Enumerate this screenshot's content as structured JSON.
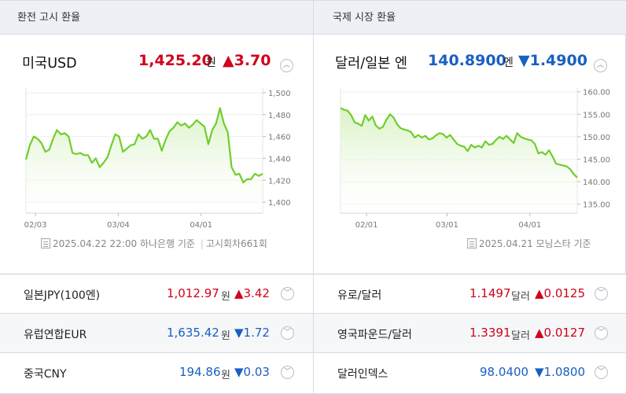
{
  "tabs": {
    "left": "환전 고시 환율",
    "right": "국제 시장 환율"
  },
  "colors": {
    "up": "#d0021b",
    "down": "#1a5fc1",
    "line": "#6fce2c",
    "fill": "#d9f2c4"
  },
  "usd": {
    "name": "미국USD",
    "value": "1,425.20",
    "unit": "원",
    "change": "▲3.70",
    "direction": "up",
    "toggle_icon": "chevron-up-icon",
    "source": "2025.04.22 22:00 하나은행 기준",
    "source_sep": "|",
    "source_extra": "고시회차661회"
  },
  "jpy": {
    "name": "달러/일본 엔",
    "value": "140.8900",
    "unit": "엔",
    "change": "▼1.4900",
    "direction": "down",
    "toggle_icon": "chevron-up-icon",
    "source": "2025.04.21 모닝스타 기준"
  },
  "chart_data": [
    {
      "type": "area",
      "title": "미국USD",
      "x_ticks": [
        "02/03",
        "03/04",
        "04/01"
      ],
      "y_ticks": [
        1400,
        1420,
        1440,
        1460,
        1480,
        1500
      ],
      "ylim": [
        1390,
        1505
      ],
      "y_decimals": 3,
      "series": [
        {
          "values": [
            1439,
            1452,
            1460,
            1458,
            1454,
            1446,
            1448,
            1458,
            1466,
            1462,
            1463,
            1460,
            1445,
            1444,
            1445,
            1443,
            1443,
            1436,
            1440,
            1432,
            1436,
            1441,
            1452,
            1462,
            1460,
            1446,
            1449,
            1452,
            1453,
            1462,
            1458,
            1460,
            1466,
            1458,
            1458,
            1447,
            1457,
            1465,
            1468,
            1473,
            1470,
            1472,
            1468,
            1471,
            1475,
            1472,
            1469,
            1453,
            1466,
            1472,
            1486,
            1472,
            1464,
            1432,
            1425,
            1426,
            1418,
            1421,
            1421,
            1426,
            1424,
            1426
          ]
        }
      ]
    },
    {
      "type": "area",
      "title": "달러/일본 엔",
      "x_ticks": [
        "02/01",
        "03/01",
        "04/01"
      ],
      "y_ticks": [
        135,
        140,
        145,
        150,
        155,
        160
      ],
      "ylim": [
        133,
        161
      ],
      "y_decimals": 2,
      "series": [
        {
          "values": [
            156.4,
            156.0,
            155.8,
            154.8,
            153.2,
            152.9,
            152.4,
            154.8,
            153.6,
            154.5,
            152.5,
            151.8,
            152.2,
            153.8,
            155.0,
            154.3,
            152.8,
            151.9,
            151.6,
            151.4,
            151.0,
            149.8,
            150.4,
            149.8,
            150.2,
            149.4,
            149.6,
            150.3,
            150.8,
            150.6,
            149.8,
            150.4,
            149.4,
            148.4,
            148.0,
            147.8,
            146.8,
            148.2,
            147.6,
            148.0,
            147.6,
            149.0,
            148.2,
            148.4,
            149.3,
            150.0,
            149.5,
            150.2,
            149.4,
            148.6,
            150.8,
            150.0,
            149.6,
            149.4,
            149.2,
            148.4,
            146.3,
            146.6,
            146.0,
            147.0,
            145.6,
            144.0,
            143.8,
            143.6,
            143.4,
            142.8,
            141.7,
            140.9
          ]
        }
      ]
    }
  ],
  "rows": [
    {
      "name": "일본JPY(100엔)",
      "value": "1,012.97",
      "unit": "원",
      "change": "▲3.42",
      "direction": "up",
      "toggle_icon": "chevron-down-icon"
    },
    {
      "name": "유로/달러",
      "value": "1.1497",
      "unit": "달러",
      "change": "▲0.0125",
      "direction": "up",
      "toggle_icon": "chevron-down-icon"
    },
    {
      "name": "유럽연합EUR",
      "value": "1,635.42",
      "unit": "원",
      "change": "▼1.72",
      "direction": "down",
      "toggle_icon": "chevron-down-icon"
    },
    {
      "name": "영국파운드/달러",
      "value": "1.3391",
      "unit": "달러",
      "change": "▲0.0127",
      "direction": "up",
      "toggle_icon": "chevron-down-icon"
    },
    {
      "name": "중국CNY",
      "value": "194.86",
      "unit": "원",
      "change": "▼0.03",
      "direction": "down",
      "toggle_icon": "chevron-down-icon"
    },
    {
      "name": "달러인덱스",
      "value": "98.0400",
      "unit": "",
      "change": "▼1.0800",
      "direction": "down",
      "toggle_icon": "chevron-down-icon"
    }
  ]
}
